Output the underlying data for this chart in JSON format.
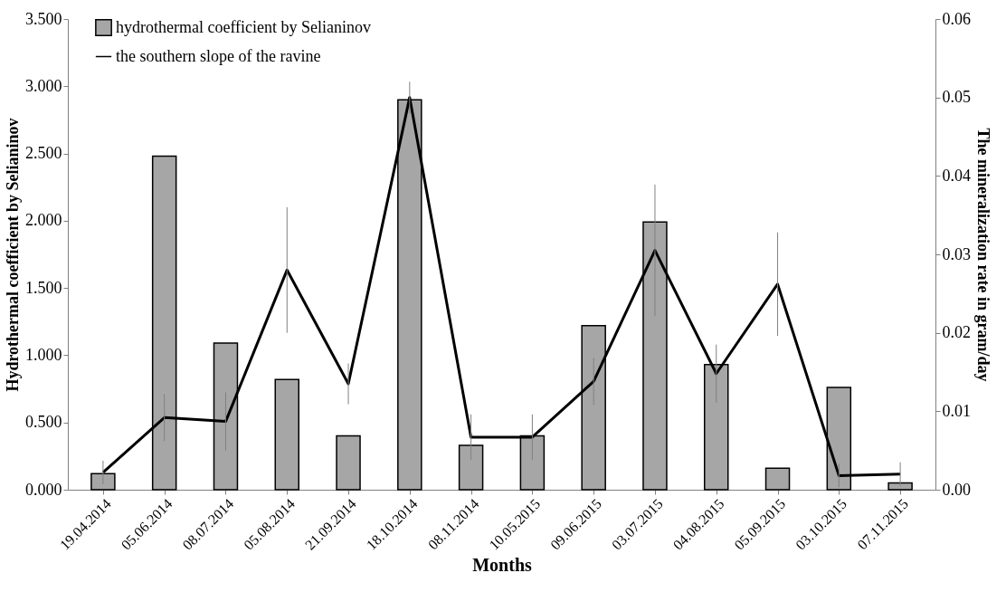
{
  "chart_data": {
    "type": "bar",
    "xlabel": "Months",
    "ylabel": "Hydrothermal  coefficient by Selianinov",
    "y2label": "The mineralization rate in gram/day",
    "categories": [
      "19.04.2014",
      "05.06.2014",
      "08.07.2014",
      "05.08.2014",
      "21.09.2014",
      "18.10.2014",
      "08.11.2014",
      "10.05.2015",
      "09.06.2015",
      "03.07.2015",
      "04.08.2015",
      "05.09.2015",
      "03.10.2015",
      "07.11.2015"
    ],
    "series": [
      {
        "name": "hydrothermal coefficient by Selianinov",
        "color": "#a6a6a6",
        "values": [
          0.12,
          2.48,
          1.09,
          0.82,
          0.4,
          2.9,
          0.33,
          0.4,
          1.22,
          1.99,
          0.93,
          0.16,
          0.76,
          0.05
        ]
      },
      {
        "name": "the southern slope of the ravine",
        "type": "line",
        "axis": "y2",
        "color": "#000000",
        "values": [
          0.0022,
          0.0092,
          0.0087,
          0.028,
          0.0135,
          0.05,
          0.0067,
          0.0067,
          0.0138,
          0.0305,
          0.0148,
          0.0262,
          0.0018,
          0.002
        ],
        "errors": [
          0.0015,
          0.003,
          0.0037,
          0.008,
          0.0026,
          0.002,
          0.0029,
          0.0029,
          0.003,
          0.0084,
          0.0037,
          0.0066,
          0.0015,
          0.0015
        ]
      }
    ],
    "ylim": [
      0,
      3.5
    ],
    "yticks": [
      {
        "value": 0,
        "label": "0.000"
      },
      {
        "value": 0.5,
        "label": "0.500"
      },
      {
        "value": 1,
        "label": "1.000"
      },
      {
        "value": 1.5,
        "label": "1.500"
      },
      {
        "value": 2,
        "label": "2.000"
      },
      {
        "value": 2.5,
        "label": "2.500"
      },
      {
        "value": 3,
        "label": "3.000"
      },
      {
        "value": 3.5,
        "label": "3.500"
      }
    ],
    "y2lim": [
      0,
      0.06
    ],
    "y2ticks": [
      {
        "value": 0,
        "label": "0.00"
      },
      {
        "value": 0.01,
        "label": "0.01"
      },
      {
        "value": 0.02,
        "label": "0.02"
      },
      {
        "value": 0.03,
        "label": "0.03"
      },
      {
        "value": 0.04,
        "label": "0.04"
      },
      {
        "value": 0.05,
        "label": "0.05"
      },
      {
        "value": 0.06,
        "label": "0.06"
      }
    ],
    "grid": false,
    "legend": "top left",
    "marker": "none",
    "line_style": "solid"
  }
}
